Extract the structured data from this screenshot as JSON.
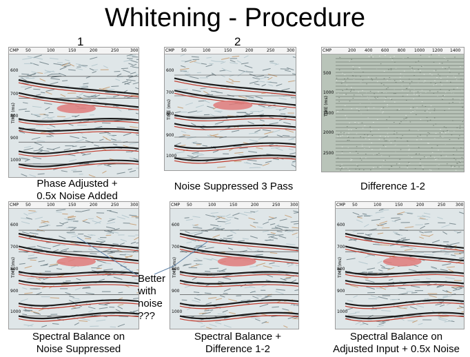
{
  "title": "Whitening - Procedure",
  "column_numbers": [
    "1",
    "2"
  ],
  "cmp_label": "CMP",
  "time_label": "TIME (ms)",
  "seismic_ticks": [
    "50",
    "100",
    "150",
    "200",
    "250",
    "300"
  ],
  "seismic_time_ticks": [
    "600",
    "700",
    "800",
    "900",
    "1000"
  ],
  "difference_ticks": [
    "200",
    "400",
    "600",
    "800",
    "1000",
    "1200",
    "1400"
  ],
  "difference_time_ticks": [
    "500",
    "1000",
    "1500",
    "2000",
    "2500"
  ],
  "panels": [
    {
      "caption_line1": "Phase  Adjusted +",
      "caption_line2": "0.5x Noise Added"
    },
    {
      "caption_line1": "Noise  Suppressed 3 Pass",
      "caption_line2": ""
    },
    {
      "caption_line1": "Difference 1-2",
      "caption_line2": ""
    },
    {
      "caption_line1": "Spectral Balance on",
      "caption_line2": "Noise Suppressed"
    },
    {
      "caption_line1": "Spectral Balance +",
      "caption_line2": "Difference 1-2"
    },
    {
      "caption_line1": "Spectral Balance on",
      "caption_line2": "Adjusted Input + 0.5x Noise"
    }
  ],
  "note": {
    "line1": "Better",
    "line2": "with",
    "line3": "noise",
    "line4": "???"
  },
  "colors": {
    "seismic_bg": "#dfe6e8",
    "reflector": "#1a1a1a",
    "red_trace": "#c0392b",
    "highlight": "#e07a7a",
    "arrow": "#5b7fa6"
  }
}
